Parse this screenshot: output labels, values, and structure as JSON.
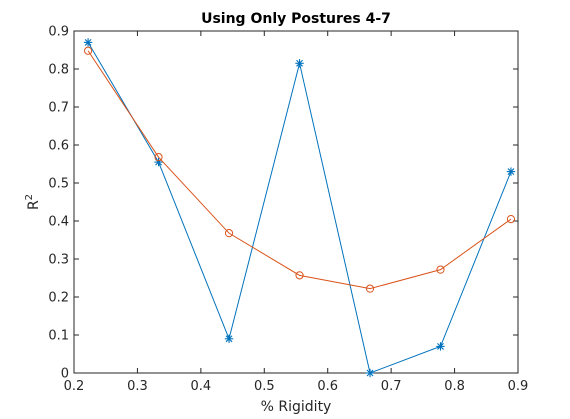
{
  "chart_data": {
    "type": "line",
    "title": "Using Only Postures 4-7",
    "xlabel": "% Rigidity",
    "ylabel_base": "R",
    "ylabel_sup": "2",
    "xlim": [
      0.2,
      0.9
    ],
    "ylim": [
      0,
      0.9
    ],
    "xticks": [
      0.2,
      0.3,
      0.4,
      0.5,
      0.6,
      0.7,
      0.8,
      0.9
    ],
    "xtick_labels": [
      "0.2",
      "0.3",
      "0.4",
      "0.5",
      "0.6",
      "0.7",
      "0.8",
      "0.9"
    ],
    "yticks": [
      0,
      0.1,
      0.2,
      0.3,
      0.4,
      0.5,
      0.6,
      0.7,
      0.8,
      0.9
    ],
    "ytick_labels": [
      "0",
      "0.1",
      "0.2",
      "0.3",
      "0.4",
      "0.5",
      "0.6",
      "0.7",
      "0.8",
      "0.9"
    ],
    "grid": false,
    "x": [
      0.2222,
      0.3333,
      0.4444,
      0.5556,
      0.6667,
      0.7778,
      0.8889
    ],
    "series": [
      {
        "marker": "asterisk",
        "color": "#0072BD",
        "values": [
          0.87,
          0.555,
          0.09,
          0.815,
          0.0,
          0.07,
          0.53
        ]
      },
      {
        "marker": "circle",
        "color": "#D95319",
        "values": [
          0.848,
          0.568,
          0.368,
          0.257,
          0.222,
          0.272,
          0.405
        ]
      }
    ]
  }
}
